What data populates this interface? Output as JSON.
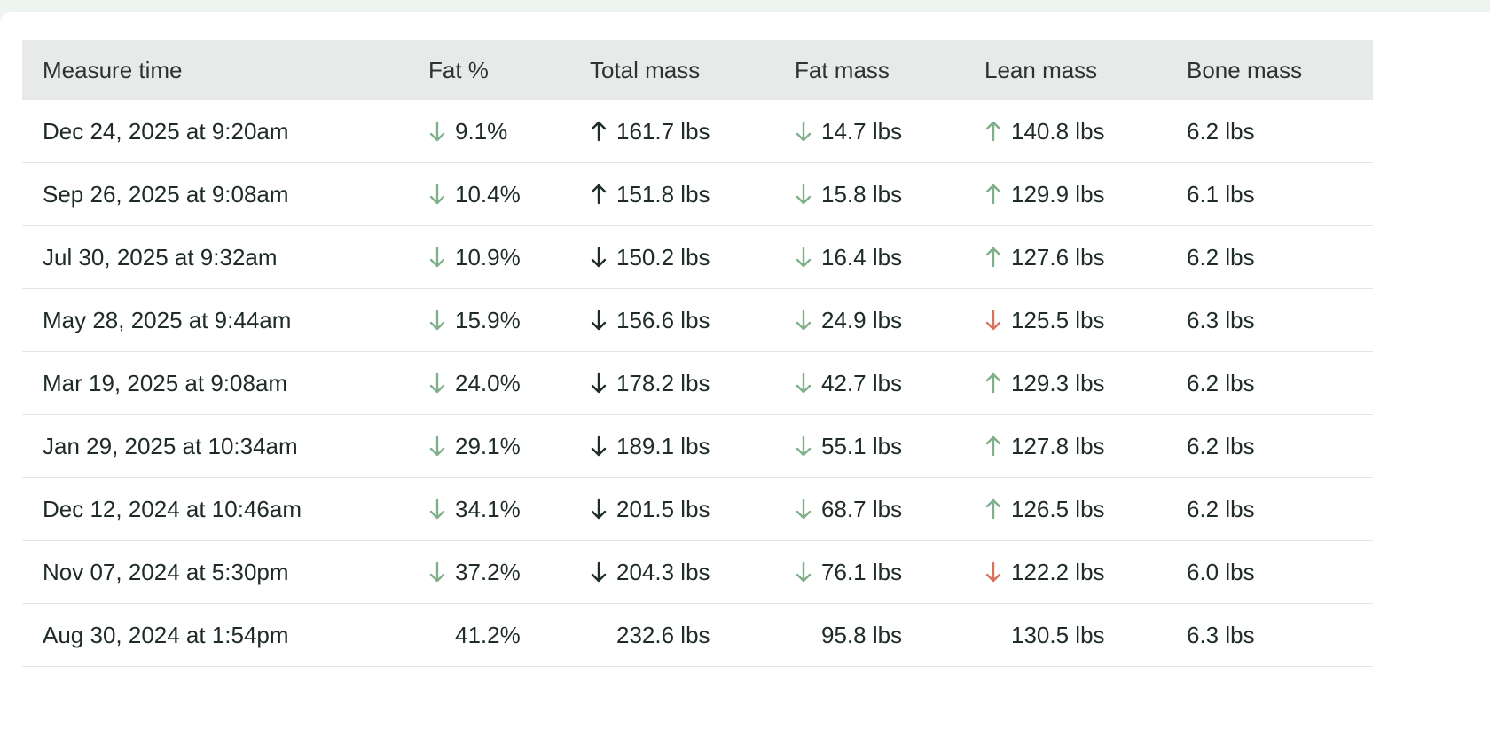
{
  "table": {
    "header": [
      "Measure time",
      "Fat %",
      "Total mass",
      "Fat mass",
      "Lean mass",
      "Bone mass"
    ],
    "rows": [
      [
        "Dec 24, 2025 at 9:20am",
        "9.1%",
        "161.7 lbs",
        "14.7 lbs",
        "140.8 lbs",
        "6.2 lbs"
      ],
      [
        "Sep 26, 2025 at 9:08am",
        "10.4%",
        "151.8 lbs",
        "15.8 lbs",
        "129.9 lbs",
        "6.1 lbs"
      ],
      [
        "Jul 30, 2025 at 9:32am",
        "10.9%",
        "150.2 lbs",
        "16.4 lbs",
        "127.6 lbs",
        "6.2 lbs"
      ],
      [
        "May 28, 2025 at 9:44am",
        "15.9%",
        "156.6 lbs",
        "24.9 lbs",
        "125.5 lbs",
        "6.3 lbs"
      ],
      [
        "Mar 19, 2025 at 9:08am",
        "24.0%",
        "178.2 lbs",
        "42.7 lbs",
        "129.3 lbs",
        "6.2 lbs"
      ],
      [
        "Jan 29, 2025 at 10:34am",
        "29.1%",
        "189.1 lbs",
        "55.1 lbs",
        "127.8 lbs",
        "6.2 lbs"
      ],
      [
        "Dec 12, 2024 at 10:46am",
        "34.1%",
        "201.5 lbs",
        "68.7 lbs",
        "126.5 lbs",
        "6.2 lbs"
      ],
      [
        "Nov 07, 2024 at 5:30pm",
        "37.2%",
        "204.3 lbs",
        "76.1 lbs",
        "122.2 lbs",
        "6.0 lbs"
      ],
      [
        "Aug 30, 2024 at 1:54pm",
        "41.2%",
        "232.6 lbs",
        "95.8 lbs",
        "130.5 lbs",
        "6.3 lbs"
      ]
    ]
  }
}
